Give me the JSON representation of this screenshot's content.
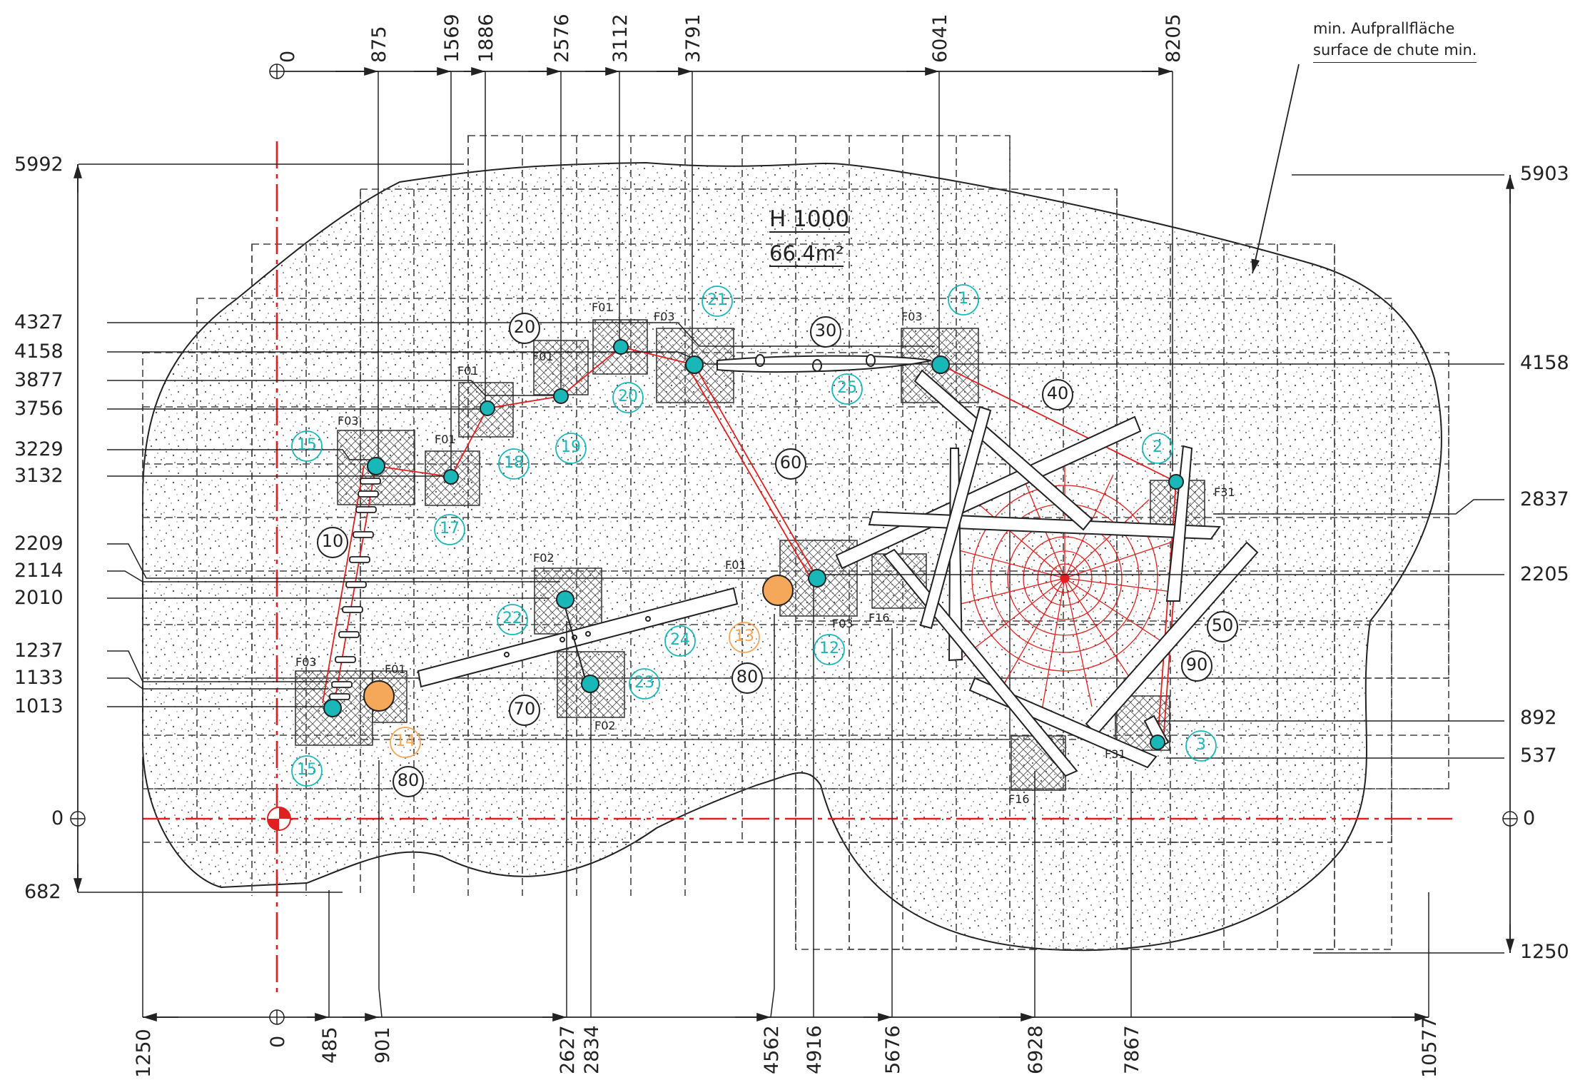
{
  "drawing": {
    "note": [
      "min. Aufprallfläche",
      "surface de chute min."
    ],
    "height_label": "H 1000",
    "area_label": "66.4m²"
  },
  "dimensions": {
    "top": [
      "0",
      "875",
      "1569",
      "1886",
      "2576",
      "3112",
      "3791",
      "6041",
      "8205"
    ],
    "bottom": [
      "1250",
      "0",
      "485",
      "901",
      "2627",
      "2834",
      "4562",
      "4916",
      "5676",
      "6928",
      "7867",
      "10577"
    ],
    "left": [
      "5992",
      "4327",
      "4158",
      "3877",
      "3756",
      "3229",
      "3132",
      "2209",
      "2114",
      "2010",
      "1237",
      "1133",
      "1013",
      "0",
      "682"
    ],
    "right": [
      "5903",
      "4158",
      "2837",
      "2205",
      "892",
      "537",
      "0",
      "1250"
    ]
  },
  "items_black": [
    "10",
    "20",
    "30",
    "40",
    "50",
    "60",
    "70",
    "80",
    "80",
    "90"
  ],
  "items_cyan": [
    "1",
    "2",
    "3",
    "12",
    "15",
    "15",
    "17",
    "18",
    "19",
    "20",
    "21",
    "22",
    "23",
    "24",
    "25"
  ],
  "items_orange": [
    "13",
    "14"
  ],
  "foundations": [
    "F01",
    "F01",
    "F01",
    "F01",
    "F01",
    "F01",
    "F02",
    "F02",
    "F03",
    "F03",
    "F03",
    "F03",
    "F03",
    "F16",
    "F16",
    "F31",
    "F31"
  ],
  "colors": {
    "line": "#222222",
    "axis": "#e02020",
    "post": "#19b7b7",
    "orange": "#f5a75a",
    "hatch": "#555555"
  }
}
